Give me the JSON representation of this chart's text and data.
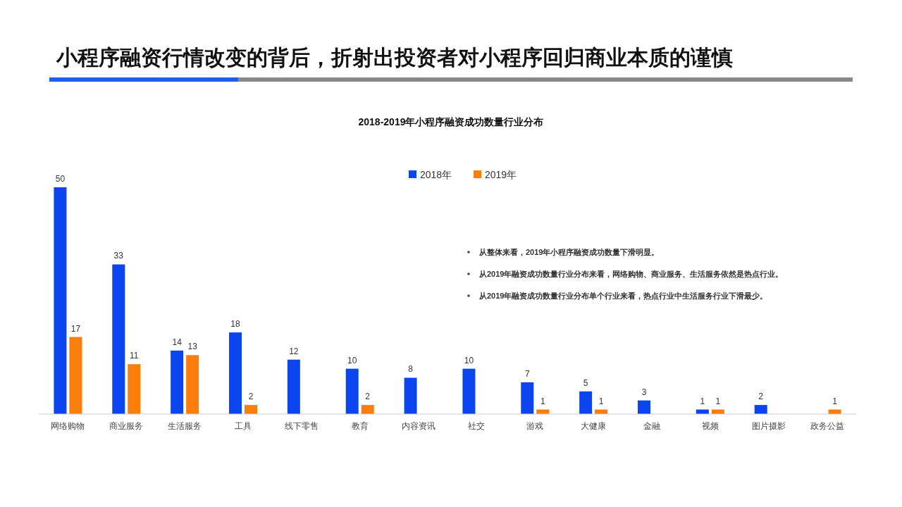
{
  "chart_data": {
    "type": "bar",
    "title": "小程序融资行情改变的背后，折射出投资者对小程序回归商业本质的谨慎",
    "subtitle": "2018-2019年小程序融资成功数量行业分布",
    "categories": [
      "网络购物",
      "商业服务",
      "生活服务",
      "工具",
      "线下零售",
      "教育",
      "内容资讯",
      "社交",
      "游戏",
      "大健康",
      "金融",
      "视频",
      "图片摄影",
      "政务公益"
    ],
    "series": [
      {
        "name": "2018年",
        "color": "#0b45f0",
        "values": [
          50,
          33,
          14,
          18,
          12,
          10,
          8,
          10,
          7,
          5,
          3,
          1,
          2,
          null
        ]
      },
      {
        "name": "2019年",
        "color": "#fb7d0b",
        "values": [
          17,
          11,
          13,
          2,
          null,
          2,
          null,
          null,
          1,
          1,
          null,
          1,
          null,
          1
        ]
      }
    ],
    "data_labels": true,
    "legend": "top",
    "grid": false,
    "annotations": [
      "从整体来看，2019年小程序融资成功数量下滑明显。",
      "从2019年融资成功数量行业分布来看，网络购物、商业服务、生活服务依然是热点行业。",
      "从2019年融资成功数量行业分布单个行业来看，热点行业中生活服务行业下滑最少。"
    ]
  }
}
